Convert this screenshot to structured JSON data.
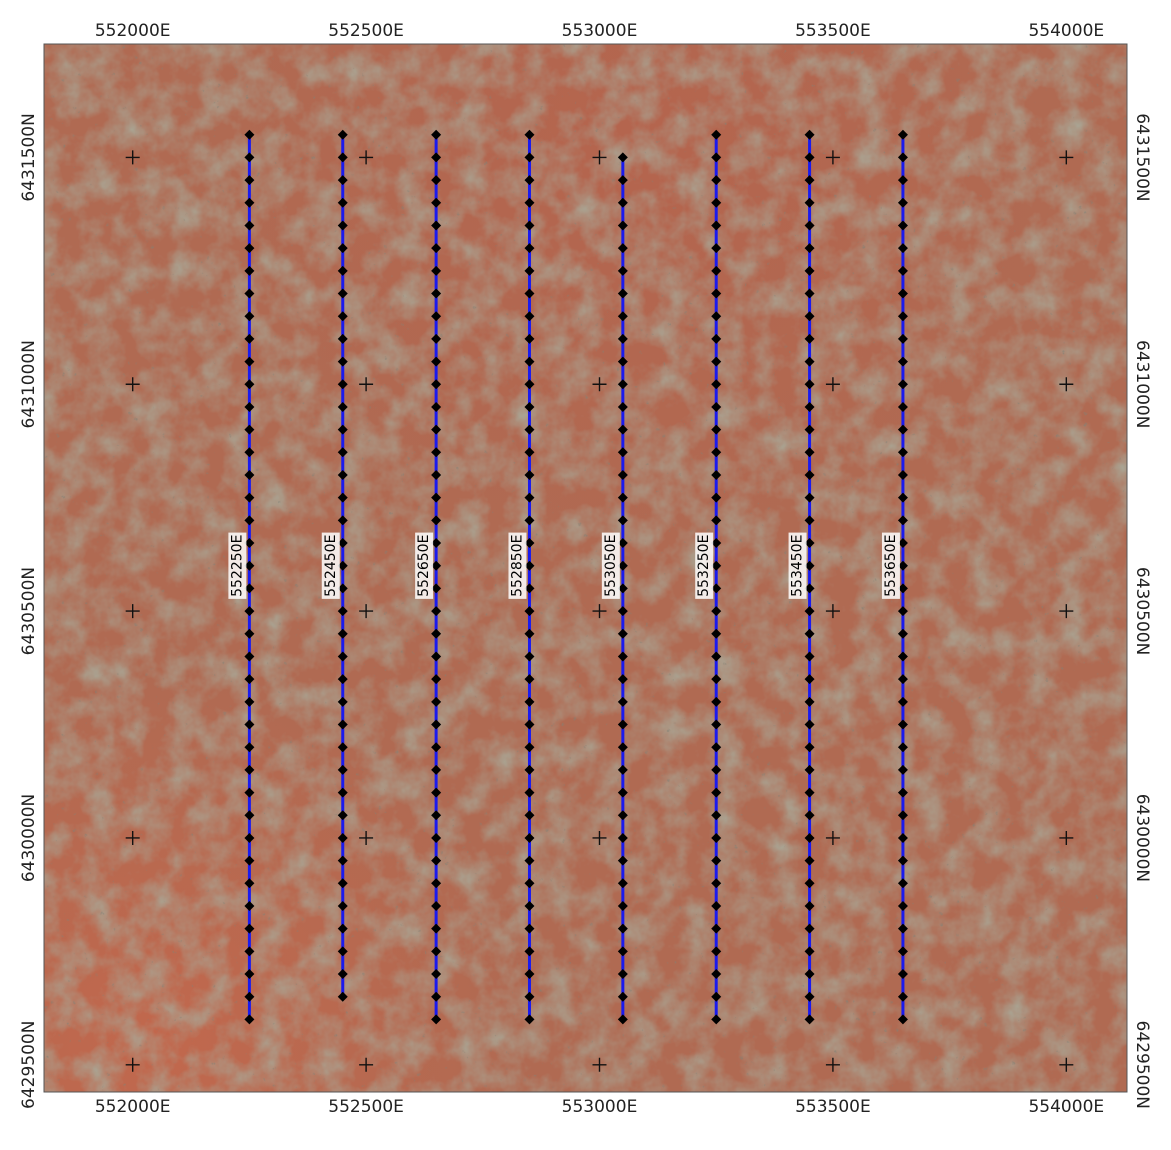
{
  "map": {
    "extent": {
      "easting": [
        551810,
        554130
      ],
      "northing": [
        6429440,
        6431750
      ]
    },
    "grid": {
      "eastings": [
        552000,
        552500,
        553000,
        553500,
        554000
      ],
      "northings": [
        6429500,
        6430000,
        6430500,
        6431000,
        6431500
      ],
      "easting_labels": [
        "552000E",
        "552500E",
        "553000E",
        "553500E",
        "554000E"
      ],
      "northing_labels": [
        "6429500N",
        "6430000N",
        "6430500N",
        "6431000N",
        "6431500N"
      ]
    },
    "survey_lines": [
      {
        "label": "552250E",
        "easting": 552250,
        "north_start": 6429600,
        "north_end": 6431550
      },
      {
        "label": "552450E",
        "easting": 552450,
        "north_start": 6429650,
        "north_end": 6431550
      },
      {
        "label": "552650E",
        "easting": 552650,
        "north_start": 6429600,
        "north_end": 6431550
      },
      {
        "label": "552850E",
        "easting": 552850,
        "north_start": 6429600,
        "north_end": 6431550
      },
      {
        "label": "553050E",
        "easting": 553050,
        "north_start": 6429600,
        "north_end": 6431500
      },
      {
        "label": "553250E",
        "easting": 553250,
        "north_start": 6429600,
        "north_end": 6431550
      },
      {
        "label": "553450E",
        "easting": 553450,
        "north_start": 6429600,
        "north_end": 6431550
      },
      {
        "label": "553650E",
        "easting": 553650,
        "north_start": 6429600,
        "north_end": 6431550
      }
    ],
    "station_spacing_m": 50,
    "label_northing": 6430600,
    "colors": {
      "terrain_base": "#b06a52",
      "terrain_dark": "#6e6650",
      "terrain_light": "#c98a6c",
      "line": "#1a1aee",
      "station": "#000000",
      "grid_cross": "#111111",
      "label_bg": "#ffffff"
    }
  }
}
